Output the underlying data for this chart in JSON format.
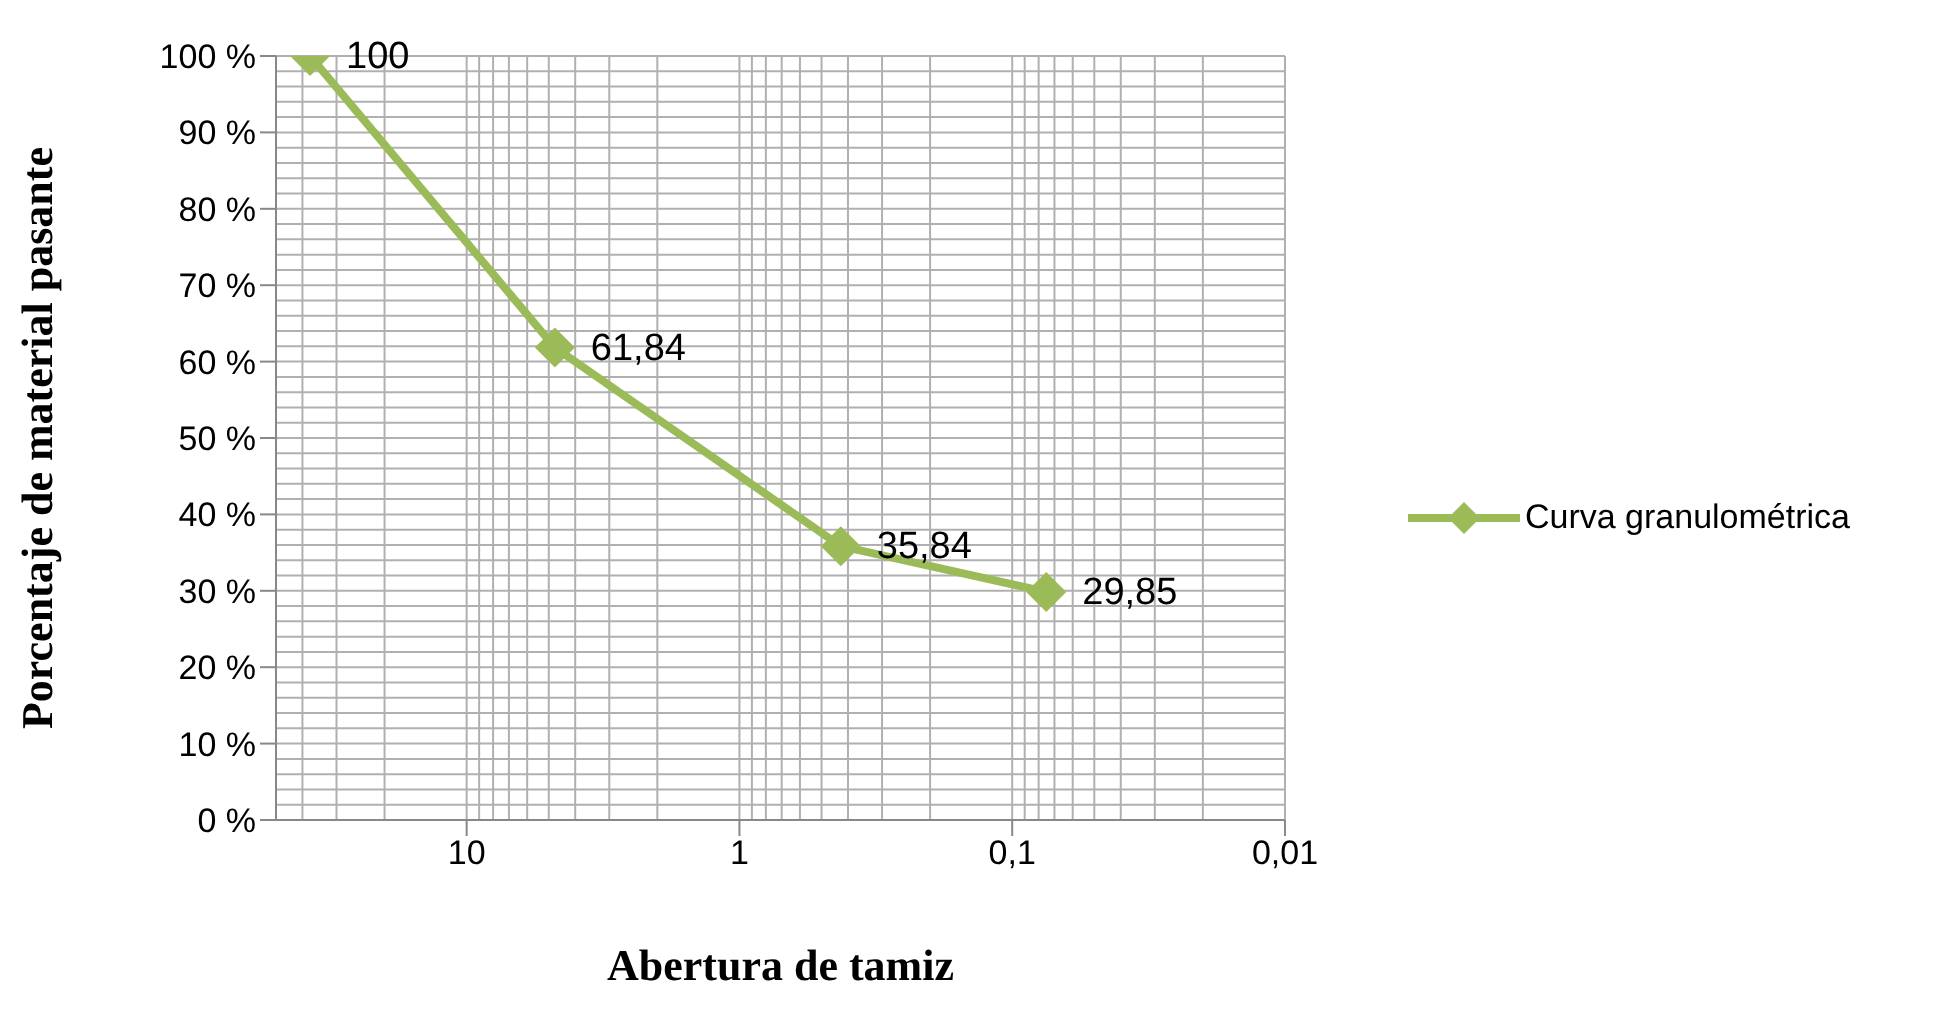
{
  "chart_data": {
    "type": "line",
    "xlabel": "Abertura de tamiz",
    "ylabel": "Porcentaje de material pasante",
    "log": "x",
    "x": [
      37.5,
      4.75,
      0.425,
      0.075
    ],
    "series": [
      {
        "name": "Curva granulométrica",
        "color": "#9bbb59",
        "values": [
          100,
          61.84,
          35.84,
          29.85
        ],
        "value_labels": [
          "100",
          "61,84",
          "35,84",
          "29,85"
        ]
      }
    ],
    "xlim": [
      50,
      0.01
    ],
    "xticks": [
      {
        "value": 10,
        "label": "10"
      },
      {
        "value": 1,
        "label": "1"
      },
      {
        "value": 0.1,
        "label": "0,1"
      },
      {
        "value": 0.01,
        "label": "0,01"
      }
    ],
    "ylim": [
      0,
      100
    ],
    "yticks": [
      {
        "value": 0,
        "label": "0 %"
      },
      {
        "value": 10,
        "label": "10 %"
      },
      {
        "value": 20,
        "label": "20 %"
      },
      {
        "value": 30,
        "label": "30 %"
      },
      {
        "value": 40,
        "label": "40 %"
      },
      {
        "value": 50,
        "label": "50 %"
      },
      {
        "value": 60,
        "label": "60 %"
      },
      {
        "value": 70,
        "label": "70 %"
      },
      {
        "value": 80,
        "label": "80 %"
      },
      {
        "value": 90,
        "label": "90 %"
      },
      {
        "value": 100,
        "label": "100 %"
      }
    ],
    "grid": true,
    "legend": "right",
    "marker": "diamond",
    "line_style": "solid"
  }
}
